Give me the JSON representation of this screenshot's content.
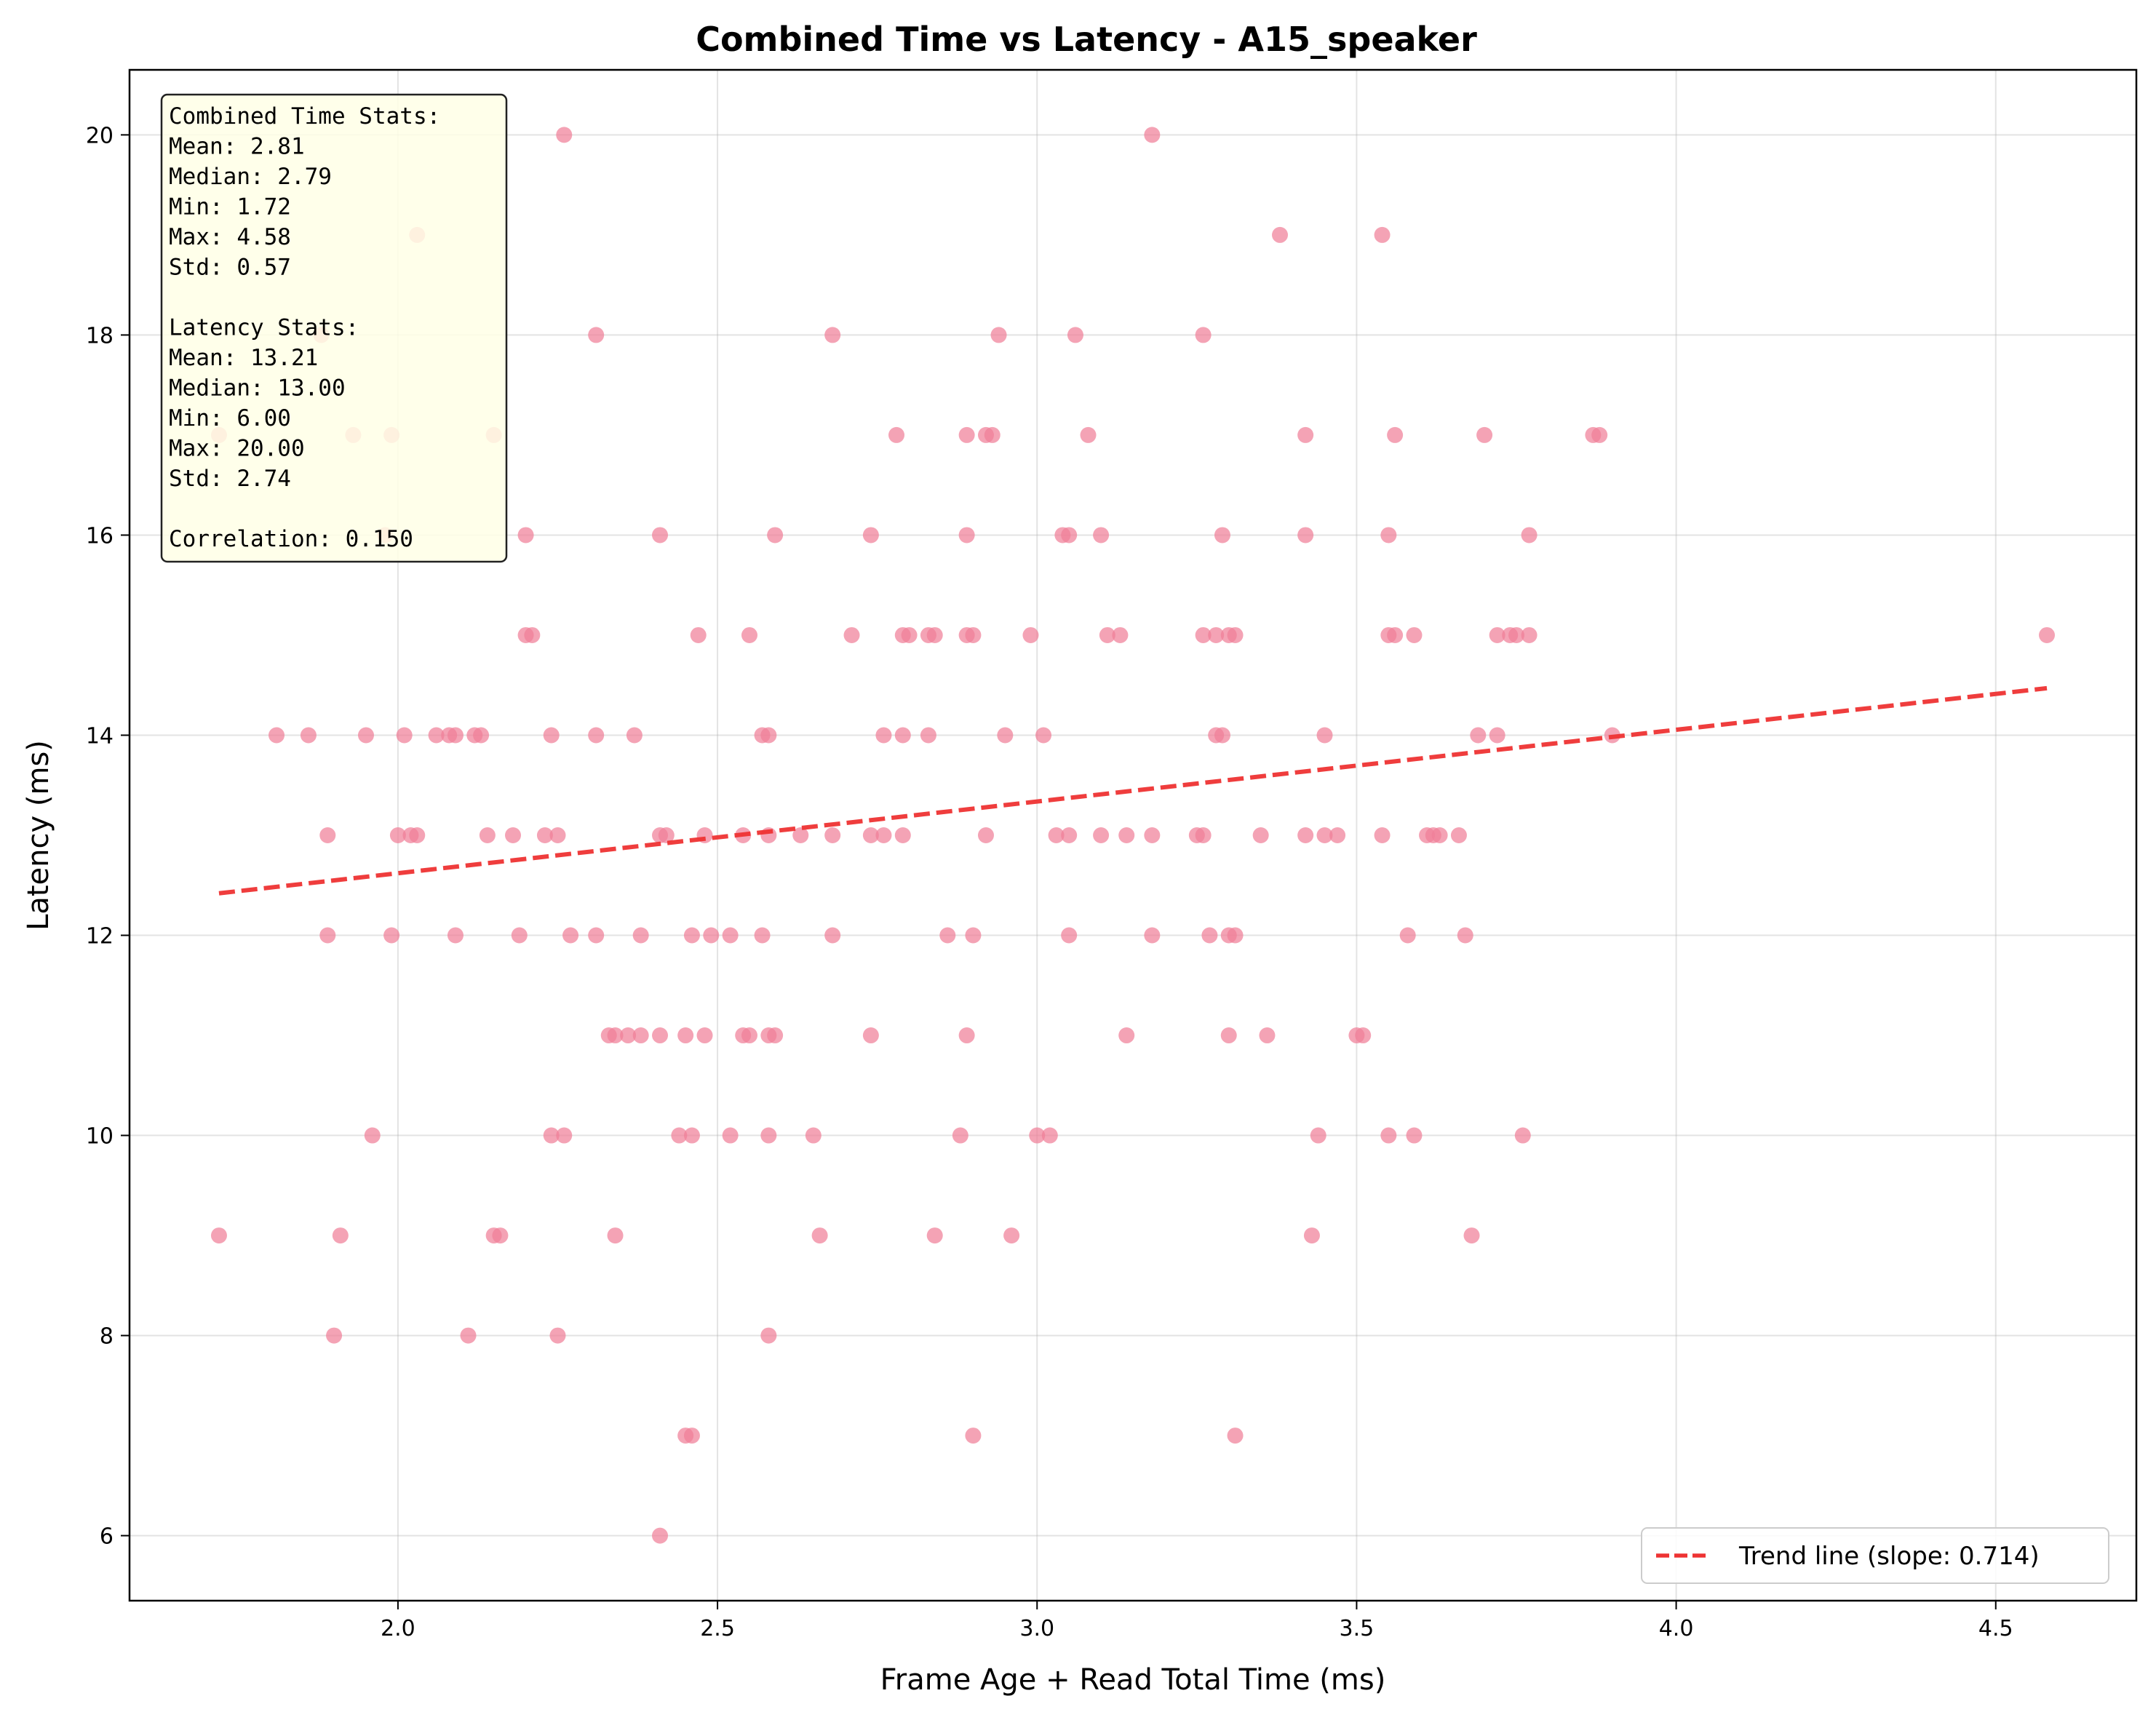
{
  "chart_data": {
    "type": "scatter",
    "title": "Combined Time vs Latency - A15_speaker",
    "xlabel": "Frame Age + Read Total Time (ms)",
    "ylabel": "Latency (ms)",
    "xlim": [
      1.58,
      4.72
    ],
    "ylim": [
      5.35,
      20.65
    ],
    "xticks": [
      "2.0",
      "2.5",
      "3.0",
      "3.5",
      "4.0",
      "4.5"
    ],
    "yticks": [
      "6",
      "8",
      "10",
      "12",
      "14",
      "16",
      "18",
      "20"
    ],
    "grid": true,
    "point_color": "#F08098",
    "trend_color": "#EE3333",
    "legend_position": "lower-right",
    "legend": [
      "Trend line (slope: 0.714)"
    ],
    "trend_line": {
      "x": [
        1.72,
        4.58
      ],
      "y": [
        12.42,
        14.47
      ]
    },
    "stats_box": {
      "position": "top-left",
      "lines": [
        "Combined Time Stats:",
        "Mean: 2.81",
        "Median: 2.79",
        "Min: 1.72",
        "Max: 4.58",
        "Std: 0.57",
        "",
        "Latency Stats:",
        "Mean: 13.21",
        "Median: 13.00",
        "Min: 6.00",
        "Max: 20.00",
        "Std: 2.74",
        "",
        "Correlation: 0.150"
      ]
    },
    "points": [
      [
        2.26,
        20
      ],
      [
        3.18,
        20
      ],
      [
        2.03,
        19
      ],
      [
        3.38,
        19
      ],
      [
        3.54,
        19
      ],
      [
        1.88,
        18
      ],
      [
        2.31,
        18
      ],
      [
        2.68,
        18
      ],
      [
        2.94,
        18
      ],
      [
        3.06,
        18
      ],
      [
        3.26,
        18
      ],
      [
        1.72,
        17
      ],
      [
        1.93,
        17
      ],
      [
        1.99,
        17
      ],
      [
        2.15,
        17
      ],
      [
        2.78,
        17
      ],
      [
        2.89,
        17
      ],
      [
        2.92,
        17
      ],
      [
        2.93,
        17
      ],
      [
        3.08,
        17
      ],
      [
        3.42,
        17
      ],
      [
        3.56,
        17
      ],
      [
        3.7,
        17
      ],
      [
        3.87,
        17
      ],
      [
        3.88,
        17
      ],
      [
        1.98,
        16
      ],
      [
        2.2,
        16
      ],
      [
        2.41,
        16
      ],
      [
        2.59,
        16
      ],
      [
        2.74,
        16
      ],
      [
        2.89,
        16
      ],
      [
        3.04,
        16
      ],
      [
        3.05,
        16
      ],
      [
        3.1,
        16
      ],
      [
        3.29,
        16
      ],
      [
        3.42,
        16
      ],
      [
        3.55,
        16
      ],
      [
        3.77,
        16
      ],
      [
        2.2,
        15
      ],
      [
        2.21,
        15
      ],
      [
        2.47,
        15
      ],
      [
        2.55,
        15
      ],
      [
        2.71,
        15
      ],
      [
        2.79,
        15
      ],
      [
        2.8,
        15
      ],
      [
        2.83,
        15
      ],
      [
        2.84,
        15
      ],
      [
        2.89,
        15
      ],
      [
        2.9,
        15
      ],
      [
        2.99,
        15
      ],
      [
        3.11,
        15
      ],
      [
        3.13,
        15
      ],
      [
        3.26,
        15
      ],
      [
        3.28,
        15
      ],
      [
        3.3,
        15
      ],
      [
        3.31,
        15
      ],
      [
        3.55,
        15
      ],
      [
        3.56,
        15
      ],
      [
        3.59,
        15
      ],
      [
        3.72,
        15
      ],
      [
        3.74,
        15
      ],
      [
        3.75,
        15
      ],
      [
        3.77,
        15
      ],
      [
        4.58,
        15
      ],
      [
        1.81,
        14
      ],
      [
        1.86,
        14
      ],
      [
        1.95,
        14
      ],
      [
        2.01,
        14
      ],
      [
        2.06,
        14
      ],
      [
        2.08,
        14
      ],
      [
        2.09,
        14
      ],
      [
        2.12,
        14
      ],
      [
        2.13,
        14
      ],
      [
        2.24,
        14
      ],
      [
        2.31,
        14
      ],
      [
        2.37,
        14
      ],
      [
        2.57,
        14
      ],
      [
        2.58,
        14
      ],
      [
        2.76,
        14
      ],
      [
        2.79,
        14
      ],
      [
        2.83,
        14
      ],
      [
        2.95,
        14
      ],
      [
        3.01,
        14
      ],
      [
        3.28,
        14
      ],
      [
        3.29,
        14
      ],
      [
        3.45,
        14
      ],
      [
        3.69,
        14
      ],
      [
        3.72,
        14
      ],
      [
        3.9,
        14
      ],
      [
        1.89,
        13
      ],
      [
        2.0,
        13
      ],
      [
        2.02,
        13
      ],
      [
        2.03,
        13
      ],
      [
        2.14,
        13
      ],
      [
        2.18,
        13
      ],
      [
        2.23,
        13
      ],
      [
        2.25,
        13
      ],
      [
        2.41,
        13
      ],
      [
        2.42,
        13
      ],
      [
        2.48,
        13
      ],
      [
        2.54,
        13
      ],
      [
        2.58,
        13
      ],
      [
        2.63,
        13
      ],
      [
        2.68,
        13
      ],
      [
        2.74,
        13
      ],
      [
        2.76,
        13
      ],
      [
        2.79,
        13
      ],
      [
        2.92,
        13
      ],
      [
        3.03,
        13
      ],
      [
        3.05,
        13
      ],
      [
        3.1,
        13
      ],
      [
        3.14,
        13
      ],
      [
        3.18,
        13
      ],
      [
        3.25,
        13
      ],
      [
        3.26,
        13
      ],
      [
        3.35,
        13
      ],
      [
        3.42,
        13
      ],
      [
        3.45,
        13
      ],
      [
        3.47,
        13
      ],
      [
        3.54,
        13
      ],
      [
        3.61,
        13
      ],
      [
        3.62,
        13
      ],
      [
        3.63,
        13
      ],
      [
        3.66,
        13
      ],
      [
        1.89,
        12
      ],
      [
        1.99,
        12
      ],
      [
        2.09,
        12
      ],
      [
        2.19,
        12
      ],
      [
        2.27,
        12
      ],
      [
        2.31,
        12
      ],
      [
        2.38,
        12
      ],
      [
        2.46,
        12
      ],
      [
        2.49,
        12
      ],
      [
        2.52,
        12
      ],
      [
        2.57,
        12
      ],
      [
        2.68,
        12
      ],
      [
        2.86,
        12
      ],
      [
        2.9,
        12
      ],
      [
        3.05,
        12
      ],
      [
        3.18,
        12
      ],
      [
        3.27,
        12
      ],
      [
        3.3,
        12
      ],
      [
        3.31,
        12
      ],
      [
        3.58,
        12
      ],
      [
        3.67,
        12
      ],
      [
        2.33,
        11
      ],
      [
        2.34,
        11
      ],
      [
        2.36,
        11
      ],
      [
        2.38,
        11
      ],
      [
        2.41,
        11
      ],
      [
        2.45,
        11
      ],
      [
        2.48,
        11
      ],
      [
        2.54,
        11
      ],
      [
        2.55,
        11
      ],
      [
        2.58,
        11
      ],
      [
        2.59,
        11
      ],
      [
        2.74,
        11
      ],
      [
        2.89,
        11
      ],
      [
        3.14,
        11
      ],
      [
        3.3,
        11
      ],
      [
        3.36,
        11
      ],
      [
        3.5,
        11
      ],
      [
        3.51,
        11
      ],
      [
        1.96,
        10
      ],
      [
        2.24,
        10
      ],
      [
        2.26,
        10
      ],
      [
        2.44,
        10
      ],
      [
        2.46,
        10
      ],
      [
        2.52,
        10
      ],
      [
        2.58,
        10
      ],
      [
        2.65,
        10
      ],
      [
        2.88,
        10
      ],
      [
        3.0,
        10
      ],
      [
        3.02,
        10
      ],
      [
        3.44,
        10
      ],
      [
        3.55,
        10
      ],
      [
        3.59,
        10
      ],
      [
        3.76,
        10
      ],
      [
        1.72,
        9
      ],
      [
        1.91,
        9
      ],
      [
        2.15,
        9
      ],
      [
        2.16,
        9
      ],
      [
        2.34,
        9
      ],
      [
        2.66,
        9
      ],
      [
        2.84,
        9
      ],
      [
        2.96,
        9
      ],
      [
        3.43,
        9
      ],
      [
        3.68,
        9
      ],
      [
        1.9,
        8
      ],
      [
        2.11,
        8
      ],
      [
        2.25,
        8
      ],
      [
        2.58,
        8
      ],
      [
        2.45,
        7
      ],
      [
        2.46,
        7
      ],
      [
        2.9,
        7
      ],
      [
        3.31,
        7
      ],
      [
        2.41,
        6
      ]
    ]
  }
}
